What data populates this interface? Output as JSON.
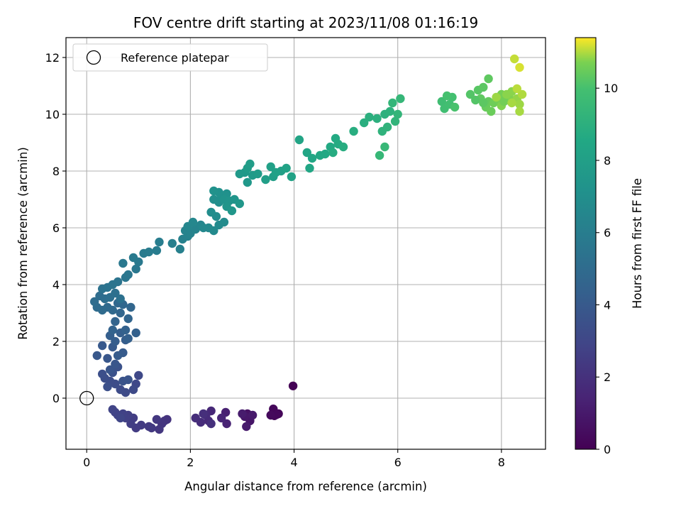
{
  "chart_data": {
    "type": "scatter",
    "title": "FOV centre drift starting at 2023/11/08 01:16:19",
    "xlabel": "Angular distance from reference (arcmin)",
    "ylabel": "Rotation from reference (arcmin)",
    "xlim": [
      -0.4,
      8.85
    ],
    "ylim": [
      -1.8,
      12.7
    ],
    "xticks": [
      0,
      2,
      4,
      6,
      8
    ],
    "xtick_labels": [
      "0",
      "2",
      "4",
      "6",
      "8"
    ],
    "yticks": [
      0,
      2,
      4,
      6,
      8,
      10,
      12
    ],
    "ytick_labels": [
      "0",
      "2",
      "4",
      "6",
      "8",
      "10",
      "12"
    ],
    "grid": true,
    "legend": {
      "position": "upper-left",
      "entries": [
        "Reference platepar"
      ]
    },
    "colorbar": {
      "label": "Hours from first FF file",
      "colormap": "viridis",
      "range": [
        0,
        11.4
      ],
      "ticks": [
        0,
        2,
        4,
        6,
        8,
        10
      ],
      "tick_labels": [
        "0",
        "2",
        "4",
        "6",
        "8",
        "10"
      ]
    },
    "reference_point": {
      "x": 0,
      "y": 0,
      "label": "Reference platepar"
    },
    "series": [
      {
        "marker_color_by": "hours",
        "points": [
          [
            3.98,
            0.43,
            0.05
          ],
          [
            3.62,
            -0.62,
            0.15
          ],
          [
            3.7,
            -0.55,
            0.2
          ],
          [
            3.6,
            -0.38,
            0.25
          ],
          [
            3.66,
            -0.58,
            0.3
          ],
          [
            3.55,
            -0.6,
            0.35
          ],
          [
            3.1,
            -0.55,
            0.7
          ],
          [
            3.15,
            -0.8,
            0.8
          ],
          [
            3.05,
            -0.65,
            0.9
          ],
          [
            3.2,
            -0.6,
            1.0
          ],
          [
            3.08,
            -1.0,
            1.05
          ],
          [
            3.0,
            -0.55,
            1.1
          ],
          [
            2.68,
            -0.5,
            1.3
          ],
          [
            2.7,
            -0.9,
            1.4
          ],
          [
            2.6,
            -0.7,
            1.5
          ],
          [
            2.4,
            -0.45,
            1.6
          ],
          [
            2.35,
            -0.8,
            1.7
          ],
          [
            2.3,
            -0.6,
            1.75
          ],
          [
            2.2,
            -0.85,
            1.8
          ],
          [
            2.1,
            -0.7,
            1.85
          ],
          [
            2.25,
            -0.55,
            1.9
          ],
          [
            2.4,
            -0.9,
            1.95
          ],
          [
            1.55,
            -0.75,
            2.1
          ],
          [
            1.5,
            -0.8,
            2.15
          ],
          [
            1.45,
            -0.9,
            2.2
          ],
          [
            1.4,
            -1.1,
            2.25
          ],
          [
            1.35,
            -0.75,
            2.3
          ],
          [
            1.25,
            -1.05,
            2.35
          ],
          [
            1.2,
            -1.0,
            2.4
          ],
          [
            1.05,
            -0.95,
            2.45
          ],
          [
            0.95,
            -1.05,
            2.5
          ],
          [
            0.9,
            -0.7,
            2.55
          ],
          [
            0.85,
            -0.9,
            2.6
          ],
          [
            0.8,
            -0.6,
            2.65
          ],
          [
            0.75,
            -0.7,
            2.7
          ],
          [
            0.7,
            -0.55,
            2.75
          ],
          [
            0.6,
            -0.6,
            2.8
          ],
          [
            0.55,
            -0.5,
            2.85
          ],
          [
            0.5,
            -0.4,
            2.9
          ],
          [
            0.65,
            -0.7,
            2.95
          ],
          [
            0.95,
            0.5,
            3.05
          ],
          [
            1.0,
            0.8,
            3.1
          ],
          [
            0.9,
            0.3,
            3.15
          ],
          [
            0.75,
            0.2,
            3.2
          ],
          [
            0.65,
            0.3,
            3.25
          ],
          [
            0.55,
            0.5,
            3.3
          ],
          [
            0.45,
            0.6,
            3.35
          ],
          [
            0.35,
            0.7,
            3.4
          ],
          [
            0.3,
            0.85,
            3.45
          ],
          [
            0.4,
            0.4,
            3.5
          ],
          [
            0.5,
            0.9,
            3.55
          ],
          [
            0.6,
            1.1,
            3.6
          ],
          [
            0.7,
            0.6,
            3.65
          ],
          [
            0.8,
            0.65,
            3.7
          ],
          [
            0.45,
            1.0,
            3.75
          ],
          [
            0.55,
            1.2,
            3.8
          ],
          [
            0.4,
            1.4,
            3.85
          ],
          [
            0.2,
            1.5,
            3.9
          ],
          [
            0.3,
            1.85,
            3.95
          ],
          [
            0.5,
            1.8,
            4.0
          ],
          [
            0.7,
            1.6,
            4.05
          ],
          [
            0.6,
            1.5,
            4.1
          ],
          [
            0.75,
            2.05,
            4.15
          ],
          [
            0.55,
            2.0,
            4.2
          ],
          [
            0.45,
            2.2,
            4.25
          ],
          [
            0.65,
            2.3,
            4.3
          ],
          [
            0.8,
            2.1,
            4.35
          ],
          [
            0.95,
            2.3,
            4.4
          ],
          [
            0.75,
            2.4,
            4.45
          ],
          [
            0.5,
            2.4,
            4.5
          ],
          [
            0.55,
            2.7,
            4.55
          ],
          [
            0.8,
            2.8,
            4.6
          ],
          [
            0.65,
            3.0,
            4.65
          ],
          [
            0.85,
            3.2,
            4.7
          ],
          [
            0.7,
            3.3,
            4.75
          ],
          [
            0.6,
            3.35,
            4.8
          ],
          [
            0.5,
            3.1,
            4.85
          ],
          [
            0.4,
            3.2,
            4.9
          ],
          [
            0.3,
            3.1,
            4.95
          ],
          [
            0.2,
            3.2,
            5.0
          ],
          [
            0.15,
            3.4,
            5.05
          ],
          [
            0.25,
            3.6,
            5.1
          ],
          [
            0.35,
            3.5,
            5.15
          ],
          [
            0.45,
            3.55,
            5.2
          ],
          [
            0.55,
            3.7,
            5.25
          ],
          [
            0.65,
            3.5,
            5.3
          ],
          [
            0.3,
            3.85,
            5.35
          ],
          [
            0.4,
            3.9,
            5.4
          ],
          [
            0.5,
            4.0,
            5.45
          ],
          [
            0.6,
            4.1,
            5.5
          ],
          [
            0.75,
            4.25,
            5.55
          ],
          [
            0.8,
            4.35,
            5.6
          ],
          [
            0.95,
            4.55,
            5.65
          ],
          [
            0.7,
            4.75,
            5.7
          ],
          [
            1.0,
            4.8,
            5.75
          ],
          [
            0.9,
            4.95,
            5.8
          ],
          [
            1.1,
            5.1,
            5.85
          ],
          [
            1.2,
            5.15,
            5.9
          ],
          [
            1.35,
            5.2,
            5.95
          ],
          [
            1.4,
            5.5,
            6.0
          ],
          [
            1.65,
            5.45,
            6.1
          ],
          [
            1.8,
            5.25,
            6.15
          ],
          [
            1.85,
            5.6,
            6.2
          ],
          [
            1.95,
            5.7,
            6.25
          ],
          [
            1.9,
            5.9,
            6.3
          ],
          [
            2.0,
            5.8,
            6.35
          ],
          [
            2.1,
            5.95,
            6.4
          ],
          [
            2.2,
            6.1,
            6.45
          ],
          [
            1.95,
            6.05,
            6.5
          ],
          [
            2.05,
            6.2,
            6.55
          ],
          [
            2.25,
            6.0,
            6.6
          ],
          [
            2.35,
            6.0,
            6.65
          ],
          [
            2.45,
            5.9,
            6.7
          ],
          [
            2.55,
            6.1,
            6.75
          ],
          [
            2.65,
            6.2,
            6.8
          ],
          [
            2.5,
            6.4,
            6.85
          ],
          [
            2.4,
            6.55,
            6.9
          ],
          [
            2.55,
            6.9,
            6.95
          ],
          [
            2.45,
            7.0,
            7.0
          ],
          [
            2.6,
            7.1,
            7.05
          ],
          [
            2.7,
            7.2,
            7.1
          ],
          [
            2.55,
            7.25,
            7.15
          ],
          [
            2.45,
            7.3,
            7.2
          ],
          [
            2.65,
            7.0,
            7.25
          ],
          [
            2.75,
            6.95,
            7.3
          ],
          [
            2.85,
            7.0,
            7.35
          ],
          [
            2.7,
            6.75,
            7.4
          ],
          [
            2.8,
            6.6,
            7.45
          ],
          [
            2.95,
            6.85,
            7.5
          ],
          [
            3.1,
            7.6,
            7.55
          ],
          [
            3.05,
            7.95,
            7.6
          ],
          [
            2.95,
            7.9,
            7.65
          ],
          [
            3.2,
            7.85,
            7.7
          ],
          [
            3.3,
            7.9,
            7.75
          ],
          [
            3.1,
            8.1,
            7.8
          ],
          [
            3.15,
            8.25,
            7.85
          ],
          [
            3.45,
            7.7,
            7.9
          ],
          [
            3.6,
            7.8,
            7.95
          ],
          [
            3.75,
            8.0,
            8.0
          ],
          [
            3.55,
            8.15,
            8.05
          ],
          [
            3.65,
            7.95,
            8.1
          ],
          [
            3.85,
            8.1,
            8.15
          ],
          [
            3.95,
            7.8,
            8.2
          ],
          [
            4.1,
            9.1,
            8.3
          ],
          [
            4.25,
            8.65,
            8.35
          ],
          [
            4.35,
            8.45,
            8.4
          ],
          [
            4.3,
            8.1,
            8.45
          ],
          [
            4.5,
            8.55,
            8.5
          ],
          [
            4.6,
            8.6,
            8.55
          ],
          [
            4.7,
            8.85,
            8.6
          ],
          [
            4.8,
            9.15,
            8.65
          ],
          [
            4.85,
            8.95,
            8.7
          ],
          [
            4.75,
            8.65,
            8.75
          ],
          [
            4.95,
            8.85,
            8.8
          ],
          [
            5.15,
            9.4,
            8.85
          ],
          [
            5.35,
            9.7,
            8.9
          ],
          [
            5.45,
            9.9,
            8.95
          ],
          [
            5.6,
            9.85,
            9.0
          ],
          [
            5.75,
            10.0,
            9.05
          ],
          [
            5.85,
            10.1,
            9.1
          ],
          [
            5.7,
            9.4,
            9.15
          ],
          [
            5.8,
            9.55,
            9.2
          ],
          [
            5.95,
            9.75,
            9.25
          ],
          [
            6.0,
            10.0,
            9.3
          ],
          [
            5.9,
            10.4,
            9.35
          ],
          [
            6.05,
            10.55,
            9.4
          ],
          [
            5.65,
            8.55,
            9.45
          ],
          [
            5.75,
            8.85,
            9.5
          ],
          [
            6.85,
            10.45,
            9.8
          ],
          [
            6.9,
            10.2,
            9.85
          ],
          [
            7.0,
            10.35,
            9.9
          ],
          [
            7.05,
            10.6,
            9.95
          ],
          [
            6.95,
            10.65,
            10.0
          ],
          [
            7.1,
            10.25,
            10.05
          ],
          [
            7.4,
            10.7,
            10.2
          ],
          [
            7.55,
            10.85,
            10.25
          ],
          [
            7.65,
            10.95,
            10.3
          ],
          [
            7.6,
            10.55,
            10.35
          ],
          [
            7.75,
            10.45,
            10.4
          ],
          [
            7.7,
            10.25,
            10.45
          ],
          [
            7.8,
            10.1,
            10.5
          ],
          [
            7.85,
            10.4,
            10.55
          ],
          [
            7.95,
            10.5,
            10.6
          ],
          [
            8.0,
            10.7,
            10.65
          ],
          [
            8.1,
            10.5,
            10.7
          ],
          [
            8.15,
            10.6,
            10.75
          ],
          [
            8.2,
            10.8,
            10.8
          ],
          [
            8.3,
            10.55,
            10.85
          ],
          [
            8.35,
            10.35,
            10.9
          ],
          [
            8.35,
            10.1,
            10.95
          ],
          [
            8.4,
            10.7,
            11.0
          ],
          [
            8.25,
            11.95,
            11.1
          ],
          [
            8.35,
            11.65,
            11.2
          ],
          [
            7.75,
            11.25,
            10.35
          ],
          [
            8.0,
            10.3,
            10.75
          ],
          [
            7.9,
            10.6,
            10.9
          ],
          [
            7.5,
            10.5,
            10.2
          ],
          [
            7.65,
            10.4,
            10.3
          ],
          [
            8.05,
            10.45,
            10.6
          ],
          [
            8.1,
            10.7,
            10.8
          ],
          [
            8.2,
            10.4,
            10.95
          ],
          [
            8.3,
            10.9,
            11.05
          ]
        ]
      }
    ]
  }
}
